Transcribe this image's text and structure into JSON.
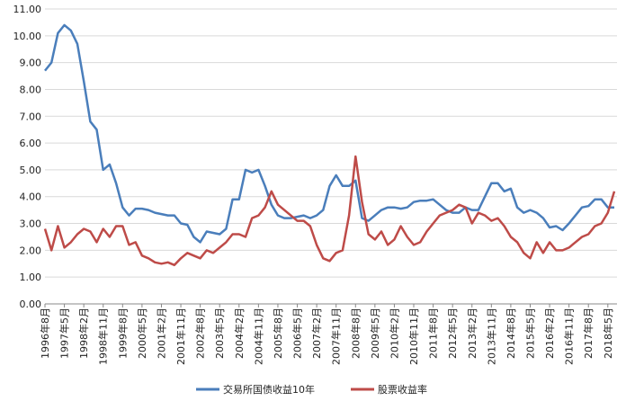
{
  "chart_data": {
    "type": "line",
    "categories": [
      "1996年8月",
      null,
      null,
      "1997年5月",
      null,
      null,
      "1998年2月",
      null,
      null,
      "1998年11月",
      null,
      null,
      "1999年8月",
      null,
      null,
      "2000年5月",
      null,
      null,
      "2001年2月",
      null,
      null,
      "2001年11月",
      null,
      null,
      "2002年8月",
      null,
      null,
      "2003年5月",
      null,
      null,
      "2004年2月",
      null,
      null,
      "2004年11月",
      null,
      null,
      "2005年8月",
      null,
      null,
      "2006年5月",
      null,
      null,
      "2007年2月",
      null,
      null,
      "2007年11月",
      null,
      null,
      "2008年8月",
      null,
      null,
      "2009年5月",
      null,
      null,
      "2010年2月",
      null,
      null,
      "2010年11月",
      null,
      null,
      "2011年8月",
      null,
      null,
      "2012年5月",
      null,
      null,
      "2013年2月",
      null,
      null,
      "2013年11月",
      null,
      null,
      "2014年8月",
      null,
      null,
      "2015年5月",
      null,
      null,
      "2016年2月",
      null,
      null,
      "2016年11月",
      null,
      null,
      "2017年8月",
      null,
      null,
      "2018年5月",
      null
    ],
    "series": [
      {
        "name": "交易所国债收益10年",
        "color": "#4a7ebb",
        "values": [
          8.7,
          9.0,
          10.1,
          10.4,
          10.2,
          9.7,
          8.3,
          6.8,
          6.5,
          5.0,
          5.2,
          4.5,
          3.6,
          3.3,
          3.55,
          3.55,
          3.5,
          3.4,
          3.35,
          3.3,
          3.3,
          3.0,
          2.95,
          2.5,
          2.3,
          2.7,
          2.65,
          2.6,
          2.8,
          3.9,
          3.9,
          5.0,
          4.9,
          5.0,
          4.4,
          3.7,
          3.3,
          3.2,
          3.2,
          3.25,
          3.3,
          3.2,
          3.3,
          3.5,
          4.4,
          4.8,
          4.4,
          4.4,
          4.6,
          3.2,
          3.1,
          3.3,
          3.5,
          3.6,
          3.6,
          3.55,
          3.6,
          3.8,
          3.85,
          3.85,
          3.9,
          3.7,
          3.5,
          3.4,
          3.4,
          3.6,
          3.5,
          3.5,
          4.0,
          4.5,
          4.5,
          4.2,
          4.3,
          3.6,
          3.4,
          3.5,
          3.4,
          3.2,
          2.85,
          2.9,
          2.75,
          3.0,
          3.3,
          3.6,
          3.65,
          3.9,
          3.9,
          3.6,
          3.6
        ]
      },
      {
        "name": "股票收益率",
        "color": "#be4b48",
        "values": [
          2.8,
          2.0,
          2.9,
          2.1,
          2.3,
          2.6,
          2.8,
          2.7,
          2.3,
          2.8,
          2.5,
          2.9,
          2.9,
          2.2,
          2.3,
          1.8,
          1.7,
          1.55,
          1.5,
          1.55,
          1.45,
          1.7,
          1.9,
          1.8,
          1.7,
          2.0,
          1.9,
          2.1,
          2.3,
          2.6,
          2.6,
          2.5,
          3.2,
          3.3,
          3.6,
          4.2,
          3.7,
          3.5,
          3.3,
          3.1,
          3.1,
          2.9,
          2.2,
          1.7,
          1.6,
          1.9,
          2.0,
          3.3,
          5.5,
          3.8,
          2.6,
          2.4,
          2.7,
          2.2,
          2.4,
          2.9,
          2.5,
          2.2,
          2.3,
          2.7,
          3.0,
          3.3,
          3.4,
          3.5,
          3.7,
          3.6,
          3.0,
          3.4,
          3.3,
          3.1,
          3.2,
          2.9,
          2.5,
          2.3,
          1.9,
          1.7,
          2.3,
          1.9,
          2.3,
          2.0,
          2.0,
          2.1,
          2.3,
          2.5,
          2.6,
          2.9,
          3.0,
          3.4,
          4.2
        ]
      }
    ],
    "ylim": [
      0,
      11
    ],
    "yticks": [
      {
        "value": 0,
        "label": "0.00"
      },
      {
        "value": 1,
        "label": "1.00"
      },
      {
        "value": 2,
        "label": "2.00"
      },
      {
        "value": 3,
        "label": "3.00"
      },
      {
        "value": 4,
        "label": "4.00"
      },
      {
        "value": 5,
        "label": "5.00"
      },
      {
        "value": 6,
        "label": "6.00"
      },
      {
        "value": 7,
        "label": "7.00"
      },
      {
        "value": 8,
        "label": "8.00"
      },
      {
        "value": 9,
        "label": "9.00"
      },
      {
        "value": 10,
        "label": "10.00"
      },
      {
        "value": 11,
        "label": "11.00"
      }
    ],
    "grid": true
  }
}
